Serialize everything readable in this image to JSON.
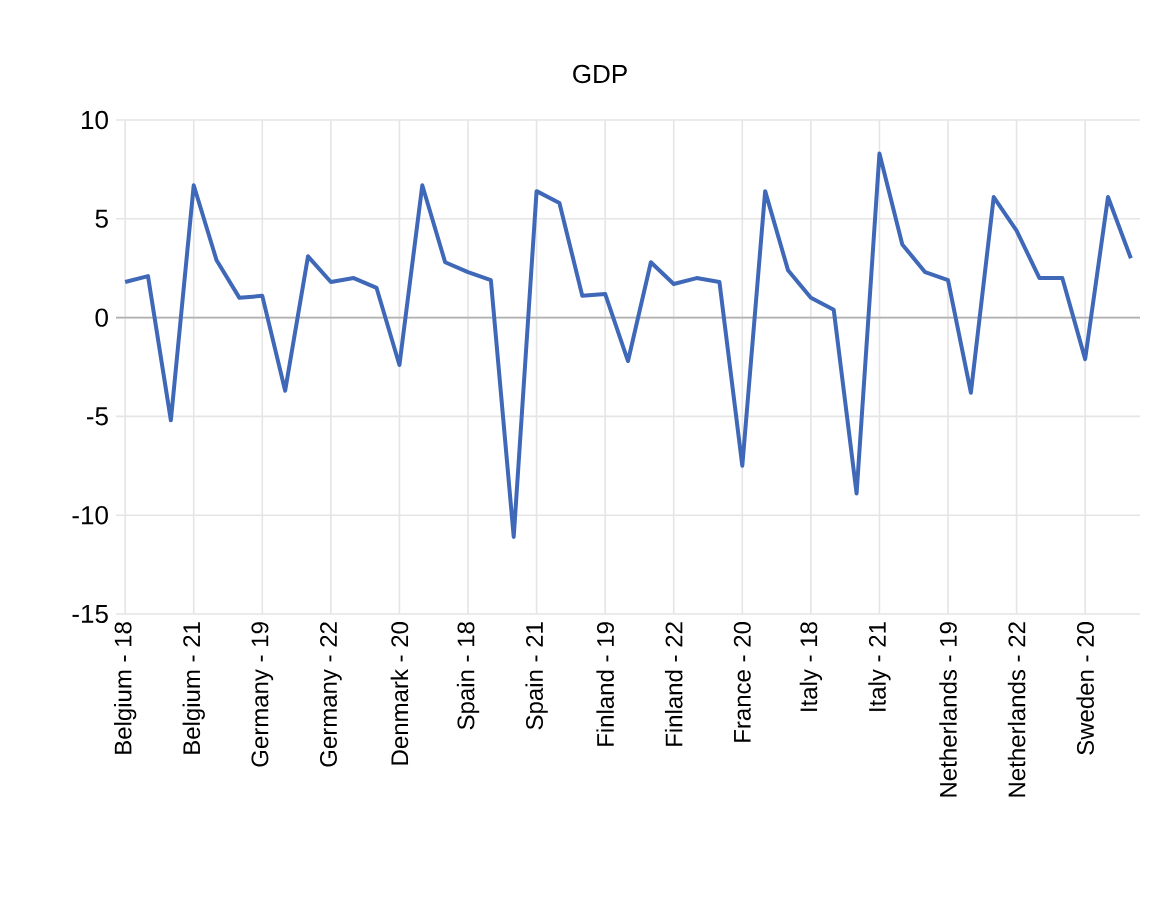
{
  "chart_data": {
    "type": "line",
    "title": "GDP",
    "categories": [
      "Belgium - 18",
      null,
      null,
      "Belgium - 21",
      null,
      null,
      "Germany - 19",
      null,
      null,
      "Germany - 22",
      null,
      null,
      "Denmark - 20",
      null,
      null,
      "Spain - 18",
      null,
      null,
      "Spain - 21",
      null,
      null,
      "Finland - 19",
      null,
      null,
      "Finland - 22",
      null,
      null,
      "France - 20",
      null,
      null,
      "Italy - 18",
      null,
      null,
      "Italy - 21",
      null,
      null,
      "Netherlands - 19",
      null,
      null,
      "Netherlands - 22",
      null,
      null,
      "Sweden - 20",
      null,
      null
    ],
    "series": [
      {
        "color": "#3f69b8",
        "values": [
          1.8,
          2.1,
          -5.2,
          6.7,
          2.9,
          1.0,
          1.1,
          -3.7,
          3.1,
          1.8,
          2.0,
          1.5,
          -2.4,
          6.7,
          2.8,
          2.3,
          1.9,
          -11.1,
          6.4,
          5.8,
          1.1,
          1.2,
          -2.2,
          2.8,
          1.7,
          2.0,
          1.8,
          -7.5,
          6.4,
          2.4,
          1.0,
          0.4,
          -8.9,
          8.3,
          3.7,
          2.3,
          1.9,
          -3.8,
          6.1,
          4.4,
          2.0,
          2.0,
          -2.1,
          6.1,
          3.0
        ]
      }
    ],
    "ylim": [
      -15,
      10
    ],
    "yticks": [
      -15,
      -10,
      -5,
      0,
      5,
      10
    ],
    "grid": true,
    "marker": "none",
    "line_style": "solid"
  }
}
